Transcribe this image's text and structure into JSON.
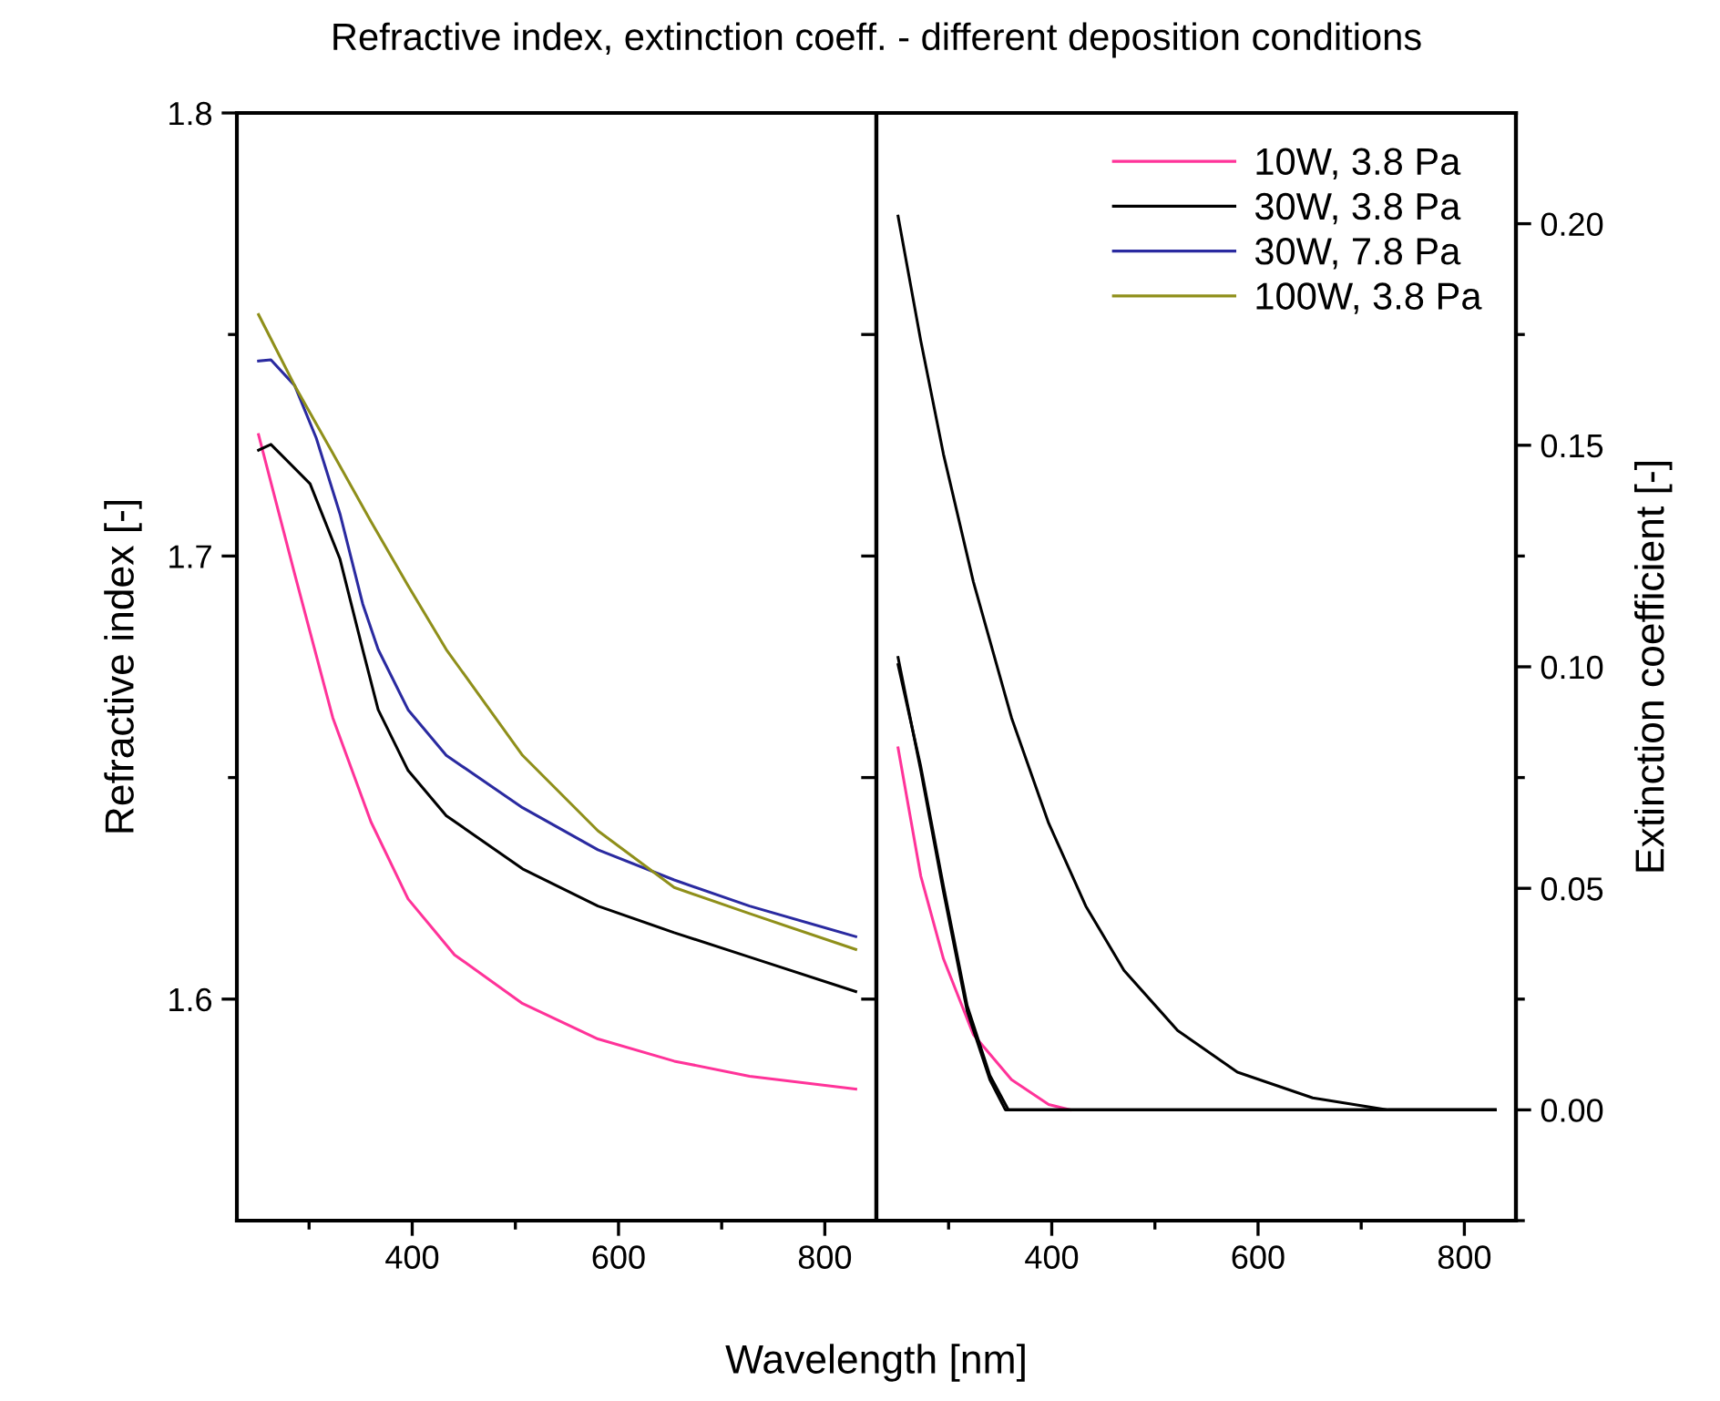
{
  "chart_data": [
    {
      "type": "line",
      "title": "Refractive index, extinction coeff. - different deposition conditions",
      "xlabel": "Wavelength [nm]",
      "ylabel": "Refractive index [-]",
      "xlim": [
        230,
        850
      ],
      "ylim": [
        1.55,
        1.8
      ],
      "xticks": [
        {
          "value": 300,
          "label": null
        },
        400,
        {
          "value": 500,
          "label": null
        },
        600,
        {
          "value": 700,
          "label": null
        },
        800
      ],
      "yticks": [
        1.6,
        {
          "value": 1.65,
          "label": null
        },
        1.7,
        {
          "value": 1.75,
          "label": null
        },
        1.8
      ],
      "legend": "top right",
      "grid": false,
      "marker": "none",
      "line_style": "solid",
      "series": [
        {
          "name": "10W, 3.8 Pa",
          "color": "#ff3399",
          "x": [
            251,
            286,
            323,
            360,
            396,
            441,
            507,
            580,
            654,
            727,
            830
          ],
          "values": [
            1.7274,
            1.696,
            1.6635,
            1.64,
            1.6226,
            1.61,
            1.599,
            1.591,
            1.586,
            1.5826,
            1.5797
          ]
        },
        {
          "name": "30W, 3.8 Pa",
          "color": "#000000",
          "x": [
            251,
            263,
            301,
            330,
            352,
            367,
            396,
            433,
            507,
            580,
            654,
            727,
            830
          ],
          "values": [
            1.7239,
            1.7252,
            1.7163,
            1.6993,
            1.6789,
            1.6653,
            1.6516,
            1.6414,
            1.6294,
            1.621,
            1.615,
            1.6095,
            1.6017
          ]
        },
        {
          "name": "30W, 7.8 Pa",
          "color": "#2a2aa0",
          "x": [
            251,
            263,
            286,
            307,
            330,
            352,
            367,
            396,
            433,
            507,
            580,
            654,
            727,
            830
          ],
          "values": [
            1.744,
            1.7443,
            1.7385,
            1.7266,
            1.7095,
            1.6892,
            1.6789,
            1.6653,
            1.655,
            1.6432,
            1.6337,
            1.6269,
            1.621,
            1.6141
          ]
        },
        {
          "name": "100W, 3.8 Pa",
          "color": "#8f8f1a",
          "x": [
            251,
            286,
            323,
            360,
            396,
            433,
            507,
            580,
            654,
            727,
            830
          ],
          "values": [
            1.7545,
            1.7385,
            1.7232,
            1.7078,
            1.6933,
            1.6789,
            1.655,
            1.638,
            1.6252,
            1.6193,
            1.6112
          ]
        }
      ]
    },
    {
      "type": "line",
      "y2label": "Extinction coefficient [-]",
      "xlim": [
        230,
        850
      ],
      "y2lim": [
        -0.025,
        0.225
      ],
      "xticks": [
        {
          "value": 300,
          "label": null
        },
        400,
        {
          "value": 500,
          "label": null
        },
        600,
        {
          "value": 700,
          "label": null
        },
        800
      ],
      "y2ticks": [
        {
          "value": -0.025,
          "label": null
        },
        "0.00",
        {
          "value": 0.025,
          "label": null
        },
        {
          "value": 0.05,
          "label": "0.05"
        },
        {
          "value": 0.075,
          "label": null
        },
        {
          "value": 0.1,
          "label": "0.10"
        },
        {
          "value": 0.125,
          "label": null
        },
        {
          "value": 0.15,
          "label": "0.15"
        },
        {
          "value": 0.175,
          "label": null
        },
        {
          "value": 0.2,
          "label": "0.20"
        }
      ],
      "grid": false,
      "marker": "none",
      "line_style": "solid",
      "series": [
        {
          "axis": "y2",
          "color": "#ff3399",
          "x": [
            251,
            273,
            295,
            324,
            361,
            397,
            418
          ],
          "values": [
            0.0817,
            0.0528,
            0.0341,
            0.017,
            0.0068,
            0.0012,
            0
          ]
        },
        {
          "axis": "y2",
          "color": "#000000",
          "x": [
            251,
            273,
            295,
            318,
            340,
            355,
            361,
            830
          ],
          "values": [
            0.1021,
            0.0766,
            0.0493,
            0.0223,
            0.0068,
            0,
            0,
            0
          ]
        },
        {
          "axis": "y2",
          "color": "#000000",
          "x": [
            251,
            273,
            295,
            318,
            340,
            358,
            364,
            830
          ],
          "values": [
            0.1005,
            0.0775,
            0.0505,
            0.0235,
            0.0078,
            0,
            0,
            0
          ]
        },
        {
          "axis": "y2",
          "color": "#000000",
          "x": [
            251,
            273,
            295,
            324,
            361,
            397,
            433,
            470,
            522,
            580,
            653,
            726,
            830
          ],
          "values": [
            0.2017,
            0.1736,
            0.148,
            0.1192,
            0.0885,
            0.0647,
            0.046,
            0.0315,
            0.0179,
            0.0085,
            0.0027,
            0,
            0
          ]
        }
      ]
    }
  ]
}
